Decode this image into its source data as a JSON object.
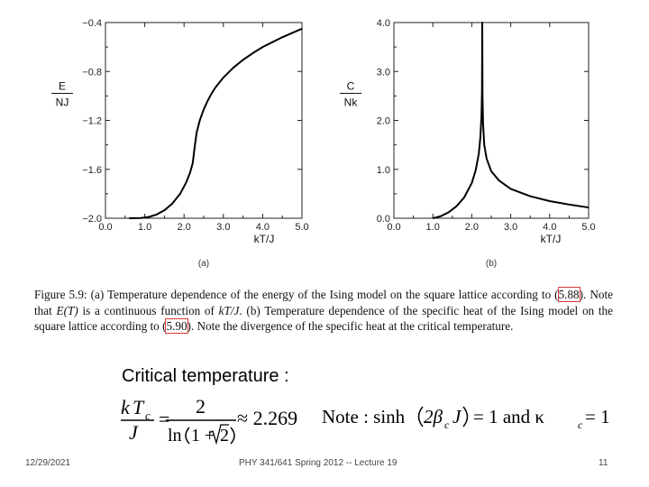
{
  "chart_data": [
    {
      "type": "line",
      "panel_label": "(a)",
      "ylabel_top": "E",
      "ylabel_bottom": "NJ",
      "xlabel": "kT/J",
      "xlim": [
        0.0,
        5.0
      ],
      "ylim": [
        -2.0,
        -0.4
      ],
      "x_ticks": [
        "0.0",
        "1.0",
        "2.0",
        "3.0",
        "4.0",
        "5.0"
      ],
      "y_ticks": [
        "−2.0",
        "−1.6",
        "−1.2",
        "−0.8",
        "−0.4"
      ],
      "grid": false,
      "series": [
        {
          "x": [
            0.6,
            0.9,
            1.1,
            1.3,
            1.5,
            1.7,
            1.9,
            2.05,
            2.15,
            2.22,
            2.269,
            2.32,
            2.4,
            2.5,
            2.6,
            2.7,
            2.8,
            3.0,
            3.25,
            3.5,
            3.75,
            4.0,
            4.25,
            4.5,
            4.75,
            5.0
          ],
          "y": [
            -2.0,
            -1.998,
            -1.99,
            -1.97,
            -1.935,
            -1.88,
            -1.8,
            -1.71,
            -1.63,
            -1.55,
            -1.42,
            -1.3,
            -1.2,
            -1.11,
            -1.04,
            -0.98,
            -0.93,
            -0.85,
            -0.77,
            -0.705,
            -0.65,
            -0.6,
            -0.56,
            -0.52,
            -0.485,
            -0.45
          ]
        }
      ]
    },
    {
      "type": "line",
      "panel_label": "(b)",
      "ylabel_top": "C",
      "ylabel_bottom": "Nk",
      "xlabel": "kT/J",
      "xlim": [
        0.0,
        5.0
      ],
      "ylim": [
        0.0,
        4.0
      ],
      "x_ticks": [
        "0.0",
        "1.0",
        "2.0",
        "3.0",
        "4.0",
        "5.0"
      ],
      "y_ticks": [
        "0.0",
        "1.0",
        "2.0",
        "3.0",
        "4.0"
      ],
      "grid": false,
      "series": [
        {
          "x": [
            1.0,
            1.2,
            1.4,
            1.6,
            1.8,
            2.0,
            2.1,
            2.18,
            2.22,
            2.25,
            2.262,
            2.269,
            2.276,
            2.29,
            2.32,
            2.38,
            2.5,
            2.7,
            3.0,
            3.5,
            4.0,
            4.5,
            5.0
          ],
          "y": [
            0.0,
            0.04,
            0.12,
            0.24,
            0.42,
            0.72,
            0.98,
            1.32,
            1.65,
            2.1,
            2.6,
            4.0,
            2.5,
            1.92,
            1.5,
            1.22,
            0.96,
            0.77,
            0.6,
            0.45,
            0.35,
            0.28,
            0.22
          ]
        }
      ]
    }
  ],
  "caption": {
    "lead": "Figure 5.9:",
    "p1": " (a) Temperature dependence of the energy of the Ising model on the square lattice according to (",
    "ref1": "5.88",
    "p2": "). Note that ",
    "et": "E(T)",
    "p3": " is a continuous function of ",
    "ktj": "kT/J",
    "p4": ". (b) Temperature dependence of the specific heat of the Ising model on the square lattice according to (",
    "ref2": "5.90",
    "p5": "). Note the divergence of the specific heat at the critical temperature."
  },
  "equation": {
    "title": "Critical temperature :",
    "k": "k",
    "T": "T",
    "sub_c": "c",
    "J": "J",
    "eq": "=",
    "two": "2",
    "ln": "ln",
    "one_plus": "1 + ",
    "sqrt_two": "2",
    "approx": "≈ 2.269",
    "note": "Note : sinh",
    "two_beta": "2β",
    "note_J": "J",
    "eq_one": "= 1  and κ",
    "eq_one_b": " = 1"
  },
  "footer": {
    "date": "12/29/2021",
    "course": "PHY 341/641 Spring 2012 -- Lecture 19",
    "page": "11"
  }
}
